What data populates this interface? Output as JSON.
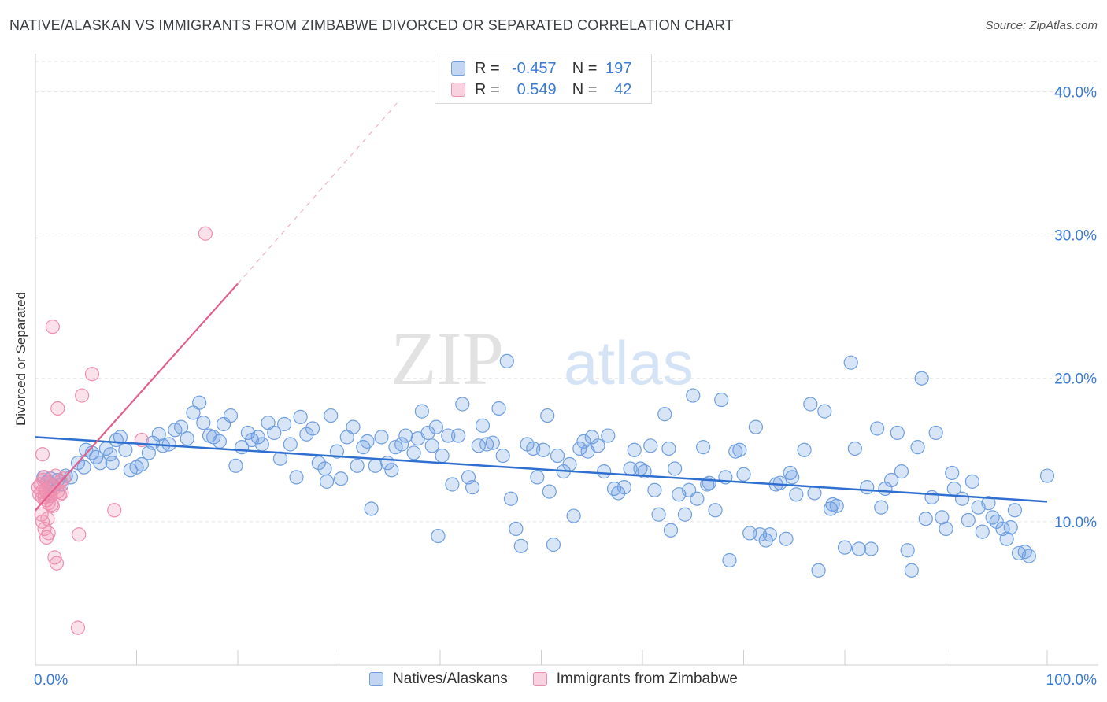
{
  "title": "NATIVE/ALASKAN VS IMMIGRANTS FROM ZIMBABWE DIVORCED OR SEPARATED CORRELATION CHART",
  "source": "Source: ZipAtlas.com",
  "watermark": {
    "zip": "ZIP",
    "atlas": "atlas"
  },
  "legend": {
    "rows": [
      {
        "r_label": "R =",
        "r_value": "-0.457",
        "n_label": "N =",
        "n_value": "197",
        "color": "#9bbfee"
      },
      {
        "r_label": "R =",
        "r_value": "0.549",
        "n_label": "N =",
        "n_value": "42",
        "color": "#f3a6c0"
      }
    ]
  },
  "bottom_legend": [
    "Natives/Alaskans",
    "Immigrants from Zimbabwe"
  ],
  "colors": {
    "blue_fill": "rgba(100,150,225,0.25)",
    "blue_stroke": "#6f9fe0",
    "blue_line": "#2f6fd0",
    "pink_fill": "rgba(240,140,170,0.25)",
    "pink_stroke": "#ee8fb0",
    "pink_line": "#e0608f",
    "axis_label": "#3a7bd5",
    "grid": "#e3e3e3"
  },
  "chart_data": {
    "type": "scatter",
    "title": "NATIVE/ALASKAN VS IMMIGRANTS FROM ZIMBABWE DIVORCED OR SEPARATED CORRELATION CHART",
    "xlabel": "",
    "ylabel": "Divorced or Separated",
    "xlim": [
      0,
      100
    ],
    "ylim": [
      0,
      42
    ],
    "x_tick_labels": [
      "0.0%",
      "100.0%"
    ],
    "y_ticks": [
      10,
      20,
      30,
      40
    ],
    "y_tick_labels": [
      "10.0%",
      "20.0%",
      "30.0%",
      "40.0%"
    ],
    "grid": true,
    "legend_position": "top-center",
    "series": [
      {
        "name": "Natives/Alaskans",
        "color": "#6f9fe0",
        "trend": {
          "x": [
            0,
            100
          ],
          "y": [
            15.9,
            11.4
          ]
        },
        "points": [
          [
            0.8,
            13.1
          ],
          [
            1.2,
            12.8
          ],
          [
            1.5,
            13.0
          ],
          [
            1.8,
            12.5
          ],
          [
            2.2,
            12.9
          ],
          [
            2.6,
            12.6
          ],
          [
            3.0,
            13.2
          ],
          [
            3.5,
            13.1
          ],
          [
            4.2,
            14.1
          ],
          [
            4.8,
            13.8
          ],
          [
            5.0,
            15.0
          ],
          [
            5.6,
            14.8
          ],
          [
            6.0,
            14.5
          ],
          [
            6.4,
            14.1
          ],
          [
            7.0,
            15.1
          ],
          [
            7.4,
            14.7
          ],
          [
            7.6,
            14.1
          ],
          [
            8.0,
            15.7
          ],
          [
            8.4,
            15.9
          ],
          [
            8.9,
            15.0
          ],
          [
            9.4,
            13.6
          ],
          [
            10.0,
            13.8
          ],
          [
            10.5,
            14.0
          ],
          [
            11.2,
            14.8
          ],
          [
            11.6,
            15.5
          ],
          [
            12.2,
            16.1
          ],
          [
            12.6,
            15.3
          ],
          [
            13.2,
            15.4
          ],
          [
            13.8,
            16.4
          ],
          [
            14.4,
            16.6
          ],
          [
            15.0,
            15.8
          ],
          [
            15.6,
            17.6
          ],
          [
            16.2,
            18.3
          ],
          [
            16.6,
            16.9
          ],
          [
            17.2,
            16.0
          ],
          [
            17.6,
            15.9
          ],
          [
            18.2,
            15.6
          ],
          [
            18.6,
            16.8
          ],
          [
            19.3,
            17.4
          ],
          [
            19.8,
            13.9
          ],
          [
            20.4,
            15.2
          ],
          [
            21.0,
            16.2
          ],
          [
            21.4,
            15.7
          ],
          [
            22.0,
            15.9
          ],
          [
            22.4,
            15.4
          ],
          [
            23.0,
            16.9
          ],
          [
            23.6,
            16.2
          ],
          [
            24.2,
            14.4
          ],
          [
            24.6,
            16.8
          ],
          [
            25.2,
            15.4
          ],
          [
            25.8,
            13.1
          ],
          [
            26.2,
            17.3
          ],
          [
            26.8,
            16.1
          ],
          [
            27.4,
            16.5
          ],
          [
            28.0,
            14.1
          ],
          [
            28.6,
            13.7
          ],
          [
            28.8,
            12.8
          ],
          [
            29.2,
            17.4
          ],
          [
            29.8,
            14.9
          ],
          [
            30.2,
            13.0
          ],
          [
            30.8,
            15.9
          ],
          [
            31.4,
            16.6
          ],
          [
            31.8,
            13.9
          ],
          [
            32.4,
            15.2
          ],
          [
            32.8,
            15.6
          ],
          [
            33.2,
            10.9
          ],
          [
            33.6,
            13.9
          ],
          [
            34.2,
            15.9
          ],
          [
            34.8,
            14.1
          ],
          [
            35.2,
            13.6
          ],
          [
            35.6,
            15.2
          ],
          [
            36.2,
            15.4
          ],
          [
            36.6,
            16.0
          ],
          [
            37.4,
            14.8
          ],
          [
            37.8,
            15.8
          ],
          [
            38.2,
            17.7
          ],
          [
            38.8,
            16.2
          ],
          [
            39.2,
            15.3
          ],
          [
            39.6,
            16.6
          ],
          [
            40.2,
            14.6
          ],
          [
            40.8,
            16.0
          ],
          [
            41.2,
            12.6
          ],
          [
            41.8,
            16.0
          ],
          [
            42.2,
            18.2
          ],
          [
            42.8,
            13.1
          ],
          [
            43.2,
            12.4
          ],
          [
            43.8,
            15.3
          ],
          [
            44.2,
            16.7
          ],
          [
            44.6,
            15.4
          ],
          [
            45.2,
            15.5
          ],
          [
            45.8,
            17.9
          ],
          [
            46.2,
            14.6
          ],
          [
            46.6,
            21.2
          ],
          [
            47.0,
            11.6
          ],
          [
            47.5,
            9.5
          ],
          [
            48.0,
            8.3
          ],
          [
            48.6,
            15.4
          ],
          [
            49.2,
            15.1
          ],
          [
            49.6,
            13.1
          ],
          [
            50.2,
            15.0
          ],
          [
            50.6,
            17.4
          ],
          [
            50.8,
            12.1
          ],
          [
            51.2,
            8.4
          ],
          [
            51.6,
            14.6
          ],
          [
            52.2,
            13.5
          ],
          [
            52.8,
            14.0
          ],
          [
            53.2,
            10.4
          ],
          [
            53.8,
            15.1
          ],
          [
            54.2,
            15.6
          ],
          [
            54.6,
            14.9
          ],
          [
            55.0,
            15.9
          ],
          [
            55.6,
            15.3
          ],
          [
            56.2,
            13.5
          ],
          [
            56.6,
            16.0
          ],
          [
            57.2,
            12.3
          ],
          [
            57.6,
            12.0
          ],
          [
            58.2,
            12.4
          ],
          [
            58.8,
            13.7
          ],
          [
            59.2,
            15.0
          ],
          [
            59.8,
            13.7
          ],
          [
            60.2,
            13.5
          ],
          [
            60.8,
            15.3
          ],
          [
            61.2,
            12.2
          ],
          [
            61.6,
            10.5
          ],
          [
            62.2,
            17.5
          ],
          [
            62.6,
            15.1
          ],
          [
            62.8,
            9.4
          ],
          [
            63.2,
            13.7
          ],
          [
            63.6,
            11.9
          ],
          [
            64.2,
            10.5
          ],
          [
            64.6,
            12.2
          ],
          [
            65.0,
            18.8
          ],
          [
            65.4,
            11.6
          ],
          [
            66.0,
            15.2
          ],
          [
            66.4,
            12.6
          ],
          [
            66.6,
            12.7
          ],
          [
            67.2,
            10.8
          ],
          [
            67.8,
            18.5
          ],
          [
            68.2,
            13.1
          ],
          [
            68.6,
            7.3
          ],
          [
            69.2,
            14.9
          ],
          [
            69.6,
            15.0
          ],
          [
            70.0,
            13.3
          ],
          [
            70.6,
            9.2
          ],
          [
            71.2,
            16.6
          ],
          [
            71.6,
            9.1
          ],
          [
            72.2,
            8.7
          ],
          [
            72.6,
            9.1
          ],
          [
            73.2,
            12.6
          ],
          [
            73.6,
            12.7
          ],
          [
            74.2,
            8.8
          ],
          [
            74.6,
            13.4
          ],
          [
            74.8,
            13.1
          ],
          [
            75.2,
            11.9
          ],
          [
            76.0,
            15.0
          ],
          [
            76.6,
            18.2
          ],
          [
            77.0,
            12.0
          ],
          [
            77.4,
            6.6
          ],
          [
            78.0,
            17.7
          ],
          [
            78.6,
            10.9
          ],
          [
            78.8,
            11.2
          ],
          [
            79.2,
            11.1
          ],
          [
            80.0,
            8.2
          ],
          [
            80.6,
            21.1
          ],
          [
            81.0,
            15.1
          ],
          [
            81.4,
            8.1
          ],
          [
            82.2,
            12.4
          ],
          [
            82.6,
            8.1
          ],
          [
            83.2,
            16.5
          ],
          [
            83.6,
            11.0
          ],
          [
            84.0,
            12.3
          ],
          [
            84.6,
            12.9
          ],
          [
            85.2,
            16.2
          ],
          [
            85.6,
            13.5
          ],
          [
            86.2,
            8.0
          ],
          [
            86.6,
            6.6
          ],
          [
            87.2,
            15.2
          ],
          [
            87.6,
            20.0
          ],
          [
            88.0,
            10.2
          ],
          [
            88.6,
            11.7
          ],
          [
            89.0,
            16.2
          ],
          [
            89.6,
            10.3
          ],
          [
            90.0,
            9.5
          ],
          [
            90.6,
            13.4
          ],
          [
            90.8,
            12.3
          ],
          [
            91.6,
            11.6
          ],
          [
            92.2,
            10.1
          ],
          [
            92.6,
            12.8
          ],
          [
            93.2,
            11.0
          ],
          [
            93.6,
            9.3
          ],
          [
            94.2,
            11.3
          ],
          [
            94.6,
            10.3
          ],
          [
            95.0,
            10.0
          ],
          [
            95.6,
            9.5
          ],
          [
            96.0,
            8.8
          ],
          [
            96.4,
            9.6
          ],
          [
            96.8,
            10.8
          ],
          [
            97.2,
            7.8
          ],
          [
            97.8,
            7.9
          ],
          [
            98.2,
            7.6
          ],
          [
            100.0,
            13.2
          ],
          [
            39.8,
            9.0
          ]
        ]
      },
      {
        "name": "Immigrants from Zimbabwe",
        "color": "#ee8fb0",
        "trend": {
          "x": [
            0,
            20
          ],
          "y": [
            10.8,
            26.6
          ]
        },
        "trend_dashed": {
          "x": [
            20,
            36
          ],
          "y": [
            26.6,
            39.4
          ]
        },
        "points": [
          [
            0.3,
            12.4
          ],
          [
            0.4,
            11.9
          ],
          [
            0.5,
            12.6
          ],
          [
            0.6,
            12.1
          ],
          [
            0.7,
            11.7
          ],
          [
            0.8,
            12.9
          ],
          [
            0.9,
            13.1
          ],
          [
            1.0,
            12.2
          ],
          [
            1.1,
            11.5
          ],
          [
            1.2,
            12.7
          ],
          [
            1.3,
            11.3
          ],
          [
            1.4,
            12.0
          ],
          [
            1.5,
            11.8
          ],
          [
            1.6,
            12.5
          ],
          [
            1.7,
            11.1
          ],
          [
            1.8,
            12.3
          ],
          [
            2.0,
            13.2
          ],
          [
            2.2,
            12.1
          ],
          [
            0.6,
            10.5
          ],
          [
            0.7,
            10.0
          ],
          [
            0.9,
            9.5
          ],
          [
            1.1,
            8.9
          ],
          [
            1.3,
            9.2
          ],
          [
            0.7,
            14.7
          ],
          [
            1.6,
            11.2
          ],
          [
            2.4,
            11.9
          ],
          [
            2.6,
            12.0
          ],
          [
            2.8,
            13.0
          ],
          [
            2.1,
            7.1
          ],
          [
            1.9,
            7.5
          ],
          [
            2.2,
            17.9
          ],
          [
            1.7,
            23.6
          ],
          [
            4.6,
            18.8
          ],
          [
            5.6,
            20.3
          ],
          [
            4.3,
            9.1
          ],
          [
            7.8,
            10.8
          ],
          [
            10.5,
            15.7
          ],
          [
            16.8,
            30.1
          ],
          [
            4.2,
            2.6
          ],
          [
            0.9,
            11.7
          ],
          [
            1.2,
            10.2
          ],
          [
            2.5,
            12.8
          ]
        ]
      }
    ]
  }
}
